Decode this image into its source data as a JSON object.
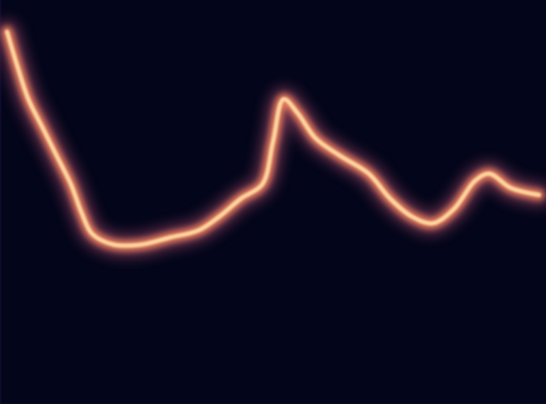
{
  "chart_data": {
    "type": "line",
    "tick_labels": false,
    "grid": false,
    "xlim": [
      0,
      77
    ],
    "ylim": [
      0,
      57
    ],
    "series": [
      {
        "color": "#fb8761",
        "x": [
          1,
          2.5,
          4,
          6,
          8,
          10,
          11.5,
          13,
          16,
          20,
          24,
          28,
          31,
          34,
          37,
          38.5,
          40,
          42,
          44.5,
          48,
          52,
          55,
          58,
          61,
          64,
          67,
          69,
          72,
          76
        ],
        "values": [
          52.5,
          47.5,
          43,
          39,
          35,
          31,
          27,
          24,
          22.5,
          22.5,
          23.5,
          24.5,
          26.5,
          29,
          31,
          37,
          43,
          41,
          37.5,
          35,
          32.5,
          29,
          26.5,
          25.5,
          27.5,
          31.5,
          32.5,
          30.5,
          29.5
        ]
      }
    ]
  }
}
